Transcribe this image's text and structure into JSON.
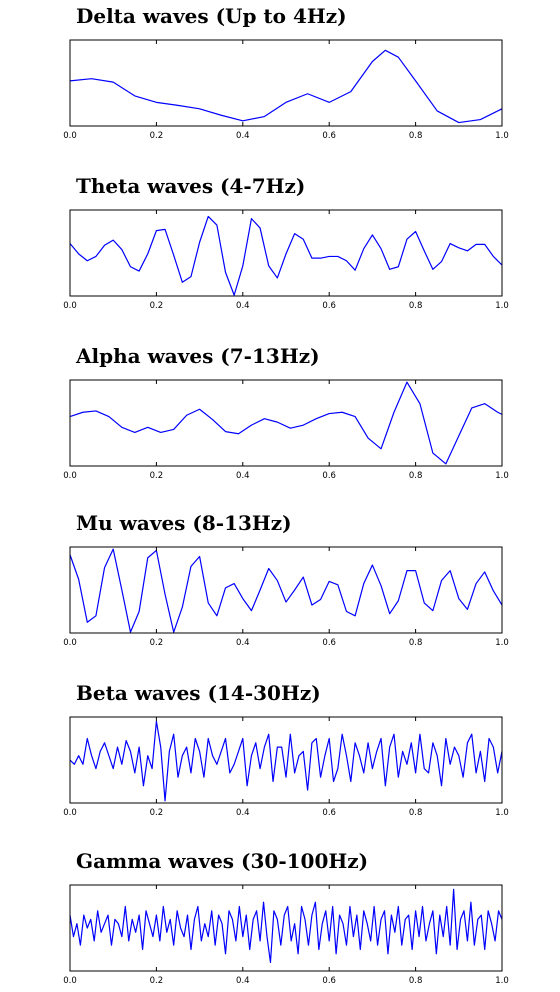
{
  "colors": {
    "line": "#0000ff",
    "axis": "#000000"
  },
  "chart_data": [
    {
      "type": "line",
      "title": "Delta waves (Up to 4Hz)",
      "xlabel": "",
      "ylabel": "",
      "xlim": [
        0,
        1
      ],
      "ylim": [
        -1,
        1
      ],
      "xticks": [
        "0.0",
        "0.2",
        "0.4",
        "0.6",
        "0.8",
        "1.0"
      ],
      "grid": false,
      "x": [
        0,
        0.05,
        0.1,
        0.15,
        0.2,
        0.25,
        0.3,
        0.35,
        0.4,
        0.45,
        0.5,
        0.55,
        0.6,
        0.65,
        0.7,
        0.73,
        0.76,
        0.8,
        0.85,
        0.9,
        0.95,
        1.0
      ],
      "y": [
        0.05,
        0.1,
        0.02,
        -0.3,
        -0.45,
        -0.52,
        -0.6,
        -0.75,
        -0.88,
        -0.78,
        -0.45,
        -0.25,
        -0.45,
        -0.2,
        0.5,
        0.76,
        0.6,
        0.05,
        -0.65,
        -0.92,
        -0.85,
        -0.6
      ]
    },
    {
      "type": "line",
      "title": "Theta waves (4-7Hz)",
      "xlabel": "",
      "ylabel": "",
      "xlim": [
        0,
        1
      ],
      "ylim": [
        -1,
        1
      ],
      "xticks": [
        "0.0",
        "0.2",
        "0.4",
        "0.6",
        "0.8",
        "1.0"
      ],
      "grid": false,
      "x": [
        0,
        0.02,
        0.04,
        0.06,
        0.08,
        0.1,
        0.12,
        0.14,
        0.16,
        0.18,
        0.2,
        0.22,
        0.24,
        0.26,
        0.28,
        0.3,
        0.32,
        0.34,
        0.36,
        0.38,
        0.4,
        0.42,
        0.44,
        0.46,
        0.48,
        0.5,
        0.52,
        0.54,
        0.56,
        0.58,
        0.6,
        0.62,
        0.64,
        0.66,
        0.68,
        0.7,
        0.72,
        0.74,
        0.76,
        0.78,
        0.8,
        0.82,
        0.84,
        0.86,
        0.88,
        0.9,
        0.92,
        0.94,
        0.96,
        0.98,
        1.0
      ],
      "y": [
        0.22,
        -0.02,
        -0.18,
        -0.08,
        0.18,
        0.3,
        0.08,
        -0.32,
        -0.42,
        -0.02,
        0.52,
        0.55,
        -0.05,
        -0.68,
        -0.55,
        0.25,
        0.85,
        0.65,
        -0.45,
        -0.98,
        -0.3,
        0.8,
        0.58,
        -0.3,
        -0.58,
        -0.02,
        0.45,
        0.32,
        -0.12,
        -0.12,
        -0.08,
        -0.08,
        -0.18,
        -0.4,
        0.1,
        0.42,
        0.1,
        -0.38,
        -0.32,
        0.32,
        0.5,
        0.05,
        -0.38,
        -0.2,
        0.22,
        0.12,
        0.05,
        0.2,
        0.2,
        -0.08,
        -0.28
      ]
    },
    {
      "type": "line",
      "title": "Alpha waves (7-13Hz)",
      "xlabel": "",
      "ylabel": "",
      "xlim": [
        0,
        1
      ],
      "ylim": [
        -1,
        1
      ],
      "xticks": [
        "0.0",
        "0.2",
        "0.4",
        "0.6",
        "0.8",
        "1.0"
      ],
      "grid": false,
      "x": [
        0,
        0.03,
        0.06,
        0.09,
        0.12,
        0.15,
        0.18,
        0.21,
        0.24,
        0.27,
        0.3,
        0.33,
        0.36,
        0.39,
        0.42,
        0.45,
        0.48,
        0.51,
        0.54,
        0.57,
        0.6,
        0.63,
        0.66,
        0.69,
        0.72,
        0.75,
        0.78,
        0.81,
        0.84,
        0.87,
        0.9,
        0.93,
        0.96,
        0.99,
        1.0
      ],
      "y": [
        0.15,
        0.25,
        0.28,
        0.15,
        -0.1,
        -0.22,
        -0.1,
        -0.22,
        -0.15,
        0.18,
        0.32,
        0.08,
        -0.2,
        -0.25,
        -0.05,
        0.1,
        0.02,
        -0.12,
        -0.05,
        0.1,
        0.22,
        0.25,
        0.15,
        -0.35,
        -0.6,
        0.25,
        0.95,
        0.45,
        -0.7,
        -0.95,
        -0.3,
        0.35,
        0.45,
        0.25,
        0.2
      ]
    },
    {
      "type": "line",
      "title": "Mu waves (8-13Hz)",
      "xlabel": "",
      "ylabel": "",
      "xlim": [
        0,
        1
      ],
      "ylim": [
        -1,
        1
      ],
      "xticks": [
        "0.0",
        "0.2",
        "0.4",
        "0.6",
        "0.8",
        "1.0"
      ],
      "grid": false,
      "x": [
        0,
        0.02,
        0.04,
        0.06,
        0.08,
        0.1,
        0.12,
        0.14,
        0.16,
        0.18,
        0.2,
        0.22,
        0.24,
        0.26,
        0.28,
        0.3,
        0.32,
        0.34,
        0.36,
        0.38,
        0.4,
        0.42,
        0.44,
        0.46,
        0.48,
        0.5,
        0.52,
        0.54,
        0.56,
        0.58,
        0.6,
        0.62,
        0.64,
        0.66,
        0.68,
        0.7,
        0.72,
        0.74,
        0.76,
        0.78,
        0.8,
        0.82,
        0.84,
        0.86,
        0.88,
        0.9,
        0.92,
        0.94,
        0.96,
        0.98,
        1.0
      ],
      "y": [
        0.82,
        0.25,
        -0.75,
        -0.6,
        0.52,
        0.95,
        0.0,
        -0.98,
        -0.5,
        0.75,
        0.92,
        -0.1,
        -0.98,
        -0.4,
        0.55,
        0.78,
        -0.3,
        -0.6,
        0.05,
        0.15,
        -0.2,
        -0.48,
        0.0,
        0.5,
        0.22,
        -0.28,
        0.0,
        0.3,
        -0.35,
        -0.22,
        0.2,
        0.12,
        -0.5,
        -0.6,
        0.15,
        0.58,
        0.1,
        -0.55,
        -0.25,
        0.45,
        0.45,
        -0.3,
        -0.48,
        0.22,
        0.45,
        -0.2,
        -0.45,
        0.15,
        0.42,
        -0.02,
        -0.35
      ]
    },
    {
      "type": "line",
      "title": "Beta waves (14-30Hz)",
      "xlabel": "",
      "ylabel": "",
      "xlim": [
        0,
        1
      ],
      "ylim": [
        -1,
        1
      ],
      "xticks": [
        "0.0",
        "0.2",
        "0.4",
        "0.6",
        "0.8",
        "1.0"
      ],
      "grid": false,
      "x": [
        0,
        0.01,
        0.02,
        0.03,
        0.04,
        0.05,
        0.06,
        0.07,
        0.08,
        0.09,
        0.1,
        0.11,
        0.12,
        0.13,
        0.14,
        0.15,
        0.16,
        0.17,
        0.18,
        0.19,
        0.2,
        0.21,
        0.22,
        0.23,
        0.24,
        0.25,
        0.26,
        0.27,
        0.28,
        0.29,
        0.3,
        0.31,
        0.32,
        0.33,
        0.34,
        0.35,
        0.36,
        0.37,
        0.38,
        0.39,
        0.4,
        0.41,
        0.42,
        0.43,
        0.44,
        0.45,
        0.46,
        0.47,
        0.48,
        0.49,
        0.5,
        0.51,
        0.52,
        0.53,
        0.54,
        0.55,
        0.56,
        0.57,
        0.58,
        0.59,
        0.6,
        0.61,
        0.62,
        0.63,
        0.64,
        0.65,
        0.66,
        0.67,
        0.68,
        0.69,
        0.7,
        0.71,
        0.72,
        0.73,
        0.74,
        0.75,
        0.76,
        0.77,
        0.78,
        0.79,
        0.8,
        0.81,
        0.82,
        0.83,
        0.84,
        0.85,
        0.86,
        0.87,
        0.88,
        0.89,
        0.9,
        0.91,
        0.92,
        0.93,
        0.94,
        0.95,
        0.96,
        0.97,
        0.98,
        0.99,
        1.0
      ],
      "y": [
        0.0,
        -0.1,
        0.1,
        -0.1,
        0.5,
        0.1,
        -0.2,
        0.2,
        0.4,
        0.1,
        -0.2,
        0.3,
        -0.1,
        0.45,
        0.2,
        -0.3,
        0.3,
        -0.6,
        0.1,
        -0.2,
        0.9,
        0.3,
        -0.95,
        0.2,
        0.6,
        -0.4,
        0.1,
        0.3,
        -0.3,
        0.5,
        0.2,
        -0.4,
        0.5,
        0.1,
        -0.1,
        0.2,
        0.5,
        -0.3,
        -0.1,
        0.2,
        0.5,
        -0.6,
        0.1,
        0.4,
        -0.2,
        0.3,
        0.6,
        -0.5,
        0.3,
        0.3,
        -0.4,
        0.6,
        -0.3,
        0.1,
        0.2,
        -0.7,
        0.4,
        0.5,
        -0.4,
        0.1,
        0.5,
        -0.5,
        -0.2,
        0.6,
        0.1,
        -0.5,
        0.4,
        0.1,
        -0.3,
        0.4,
        -0.2,
        0.2,
        0.5,
        -0.6,
        0.3,
        0.6,
        -0.4,
        0.2,
        -0.1,
        0.4,
        -0.3,
        0.6,
        -0.2,
        -0.3,
        0.4,
        0.1,
        -0.6,
        0.5,
        -0.1,
        0.3,
        0.1,
        -0.4,
        0.4,
        0.6,
        -0.3,
        0.2,
        -0.5,
        0.5,
        0.3,
        -0.3,
        0.2
      ]
    },
    {
      "type": "line",
      "title": "Gamma waves (30-100Hz)",
      "xlabel": "",
      "ylabel": "",
      "xlim": [
        0,
        1
      ],
      "ylim": [
        -1,
        1
      ],
      "xticks": [
        "0.0",
        "0.2",
        "0.4",
        "0.6",
        "0.8",
        "1.0"
      ],
      "grid": false,
      "x": [
        0,
        0.008,
        0.016,
        0.024,
        0.032,
        0.04,
        0.048,
        0.056,
        0.064,
        0.072,
        0.08,
        0.088,
        0.096,
        0.104,
        0.112,
        0.12,
        0.128,
        0.136,
        0.144,
        0.152,
        0.16,
        0.168,
        0.176,
        0.184,
        0.192,
        0.2,
        0.208,
        0.216,
        0.224,
        0.232,
        0.24,
        0.248,
        0.256,
        0.264,
        0.272,
        0.28,
        0.288,
        0.296,
        0.304,
        0.312,
        0.32,
        0.328,
        0.336,
        0.344,
        0.352,
        0.36,
        0.368,
        0.376,
        0.384,
        0.392,
        0.4,
        0.408,
        0.416,
        0.424,
        0.432,
        0.44,
        0.448,
        0.456,
        0.464,
        0.472,
        0.48,
        0.488,
        0.496,
        0.504,
        0.512,
        0.52,
        0.528,
        0.536,
        0.544,
        0.552,
        0.56,
        0.568,
        0.576,
        0.584,
        0.592,
        0.6,
        0.608,
        0.616,
        0.624,
        0.632,
        0.64,
        0.648,
        0.656,
        0.664,
        0.672,
        0.68,
        0.688,
        0.696,
        0.704,
        0.712,
        0.72,
        0.728,
        0.736,
        0.744,
        0.752,
        0.76,
        0.768,
        0.776,
        0.784,
        0.792,
        0.8,
        0.808,
        0.816,
        0.824,
        0.832,
        0.84,
        0.848,
        0.856,
        0.864,
        0.872,
        0.88,
        0.888,
        0.896,
        0.904,
        0.912,
        0.92,
        0.928,
        0.936,
        0.944,
        0.952,
        0.96,
        0.968,
        0.976,
        0.984,
        0.992,
        1.0
      ],
      "y": [
        0.3,
        -0.2,
        0.1,
        -0.4,
        0.3,
        0.0,
        0.2,
        -0.3,
        0.4,
        -0.1,
        0.1,
        0.3,
        -0.4,
        0.2,
        0.1,
        -0.2,
        0.5,
        -0.3,
        0.2,
        -0.1,
        0.3,
        -0.5,
        0.4,
        0.1,
        -0.2,
        0.3,
        -0.3,
        0.5,
        -0.1,
        0.2,
        -0.4,
        0.4,
        0.0,
        -0.2,
        0.3,
        -0.5,
        0.2,
        0.5,
        -0.3,
        0.1,
        -0.2,
        0.4,
        -0.4,
        0.3,
        0.1,
        -0.6,
        0.4,
        0.2,
        -0.3,
        0.5,
        -0.2,
        0.3,
        -0.5,
        0.2,
        0.4,
        -0.3,
        0.6,
        -0.2,
        -0.8,
        0.4,
        0.2,
        -0.4,
        0.3,
        0.5,
        -0.3,
        0.1,
        -0.6,
        0.5,
        0.2,
        -0.4,
        0.3,
        0.6,
        -0.5,
        0.1,
        0.4,
        -0.3,
        0.5,
        -0.6,
        0.3,
        0.1,
        -0.4,
        0.5,
        -0.2,
        0.3,
        -0.5,
        0.4,
        0.1,
        -0.3,
        0.5,
        -0.4,
        0.2,
        0.4,
        -0.6,
        0.3,
        -0.1,
        0.5,
        -0.4,
        0.2,
        0.3,
        -0.5,
        0.4,
        -0.2,
        0.5,
        -0.3,
        0.1,
        0.4,
        -0.6,
        0.3,
        -0.2,
        0.5,
        -0.4,
        0.9,
        -0.5,
        0.2,
        0.4,
        -0.3,
        0.6,
        -0.4,
        0.2,
        0.3,
        -0.5,
        0.4,
        0.1,
        -0.3,
        0.4,
        0.2
      ]
    }
  ]
}
